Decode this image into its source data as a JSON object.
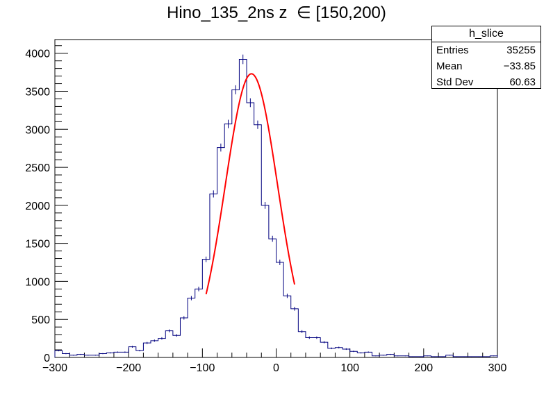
{
  "title": "Hino_135_2ns z  ∈ [150,200)",
  "stats_box": {
    "name": "h_slice",
    "rows": [
      {
        "label": "Entries",
        "value": "35255"
      },
      {
        "label": "Mean",
        "value": "−33.85"
      },
      {
        "label": "Std Dev",
        "value": "60.63"
      }
    ]
  },
  "colors": {
    "histogram": "#00007f",
    "fit": "#ff0000",
    "axis": "#000000"
  },
  "chart_data": {
    "type": "line",
    "xlim": [
      -300,
      300
    ],
    "ylim": [
      0,
      4180
    ],
    "x_ticks": [
      -300,
      -200,
      -100,
      0,
      100,
      200,
      300
    ],
    "x_tick_labels": [
      "−300",
      "−200",
      "−100",
      "0",
      "100",
      "200",
      "300"
    ],
    "y_ticks": [
      0,
      500,
      1000,
      1500,
      2000,
      2500,
      3000,
      3500,
      4000
    ],
    "y_tick_labels": [
      "0",
      "500",
      "1000",
      "1500",
      "2000",
      "2500",
      "3000",
      "3500",
      "4000"
    ],
    "grid": false,
    "histogram": {
      "bin_width": 10,
      "bin_low_edges": [
        -300,
        -290,
        -280,
        -270,
        -260,
        -250,
        -240,
        -230,
        -220,
        -210,
        -200,
        -190,
        -180,
        -170,
        -160,
        -150,
        -140,
        -130,
        -120,
        -110,
        -100,
        -90,
        -80,
        -70,
        -60,
        -50,
        -40,
        -30,
        -20,
        -10,
        0,
        10,
        20,
        30,
        40,
        50,
        60,
        70,
        80,
        90,
        100,
        110,
        120,
        130,
        140,
        150,
        160,
        170,
        180,
        190,
        200,
        210,
        220,
        230,
        240,
        250,
        260,
        270,
        280,
        290
      ],
      "counts": [
        90,
        50,
        30,
        40,
        30,
        30,
        50,
        60,
        70,
        70,
        140,
        90,
        190,
        220,
        250,
        350,
        290,
        520,
        780,
        900,
        1290,
        2150,
        2760,
        3070,
        3520,
        3920,
        3350,
        3060,
        2000,
        1560,
        1250,
        810,
        640,
        340,
        260,
        260,
        200,
        120,
        130,
        110,
        80,
        60,
        70,
        20,
        30,
        40,
        20,
        20,
        10,
        10,
        20,
        10,
        10,
        30,
        10,
        10,
        10,
        10,
        10,
        20
      ]
    },
    "fit": {
      "function": "gaussian",
      "x_range": [
        -95,
        25
      ],
      "amplitude": 3730,
      "mean": -33.5,
      "sigma": 35.5
    }
  }
}
